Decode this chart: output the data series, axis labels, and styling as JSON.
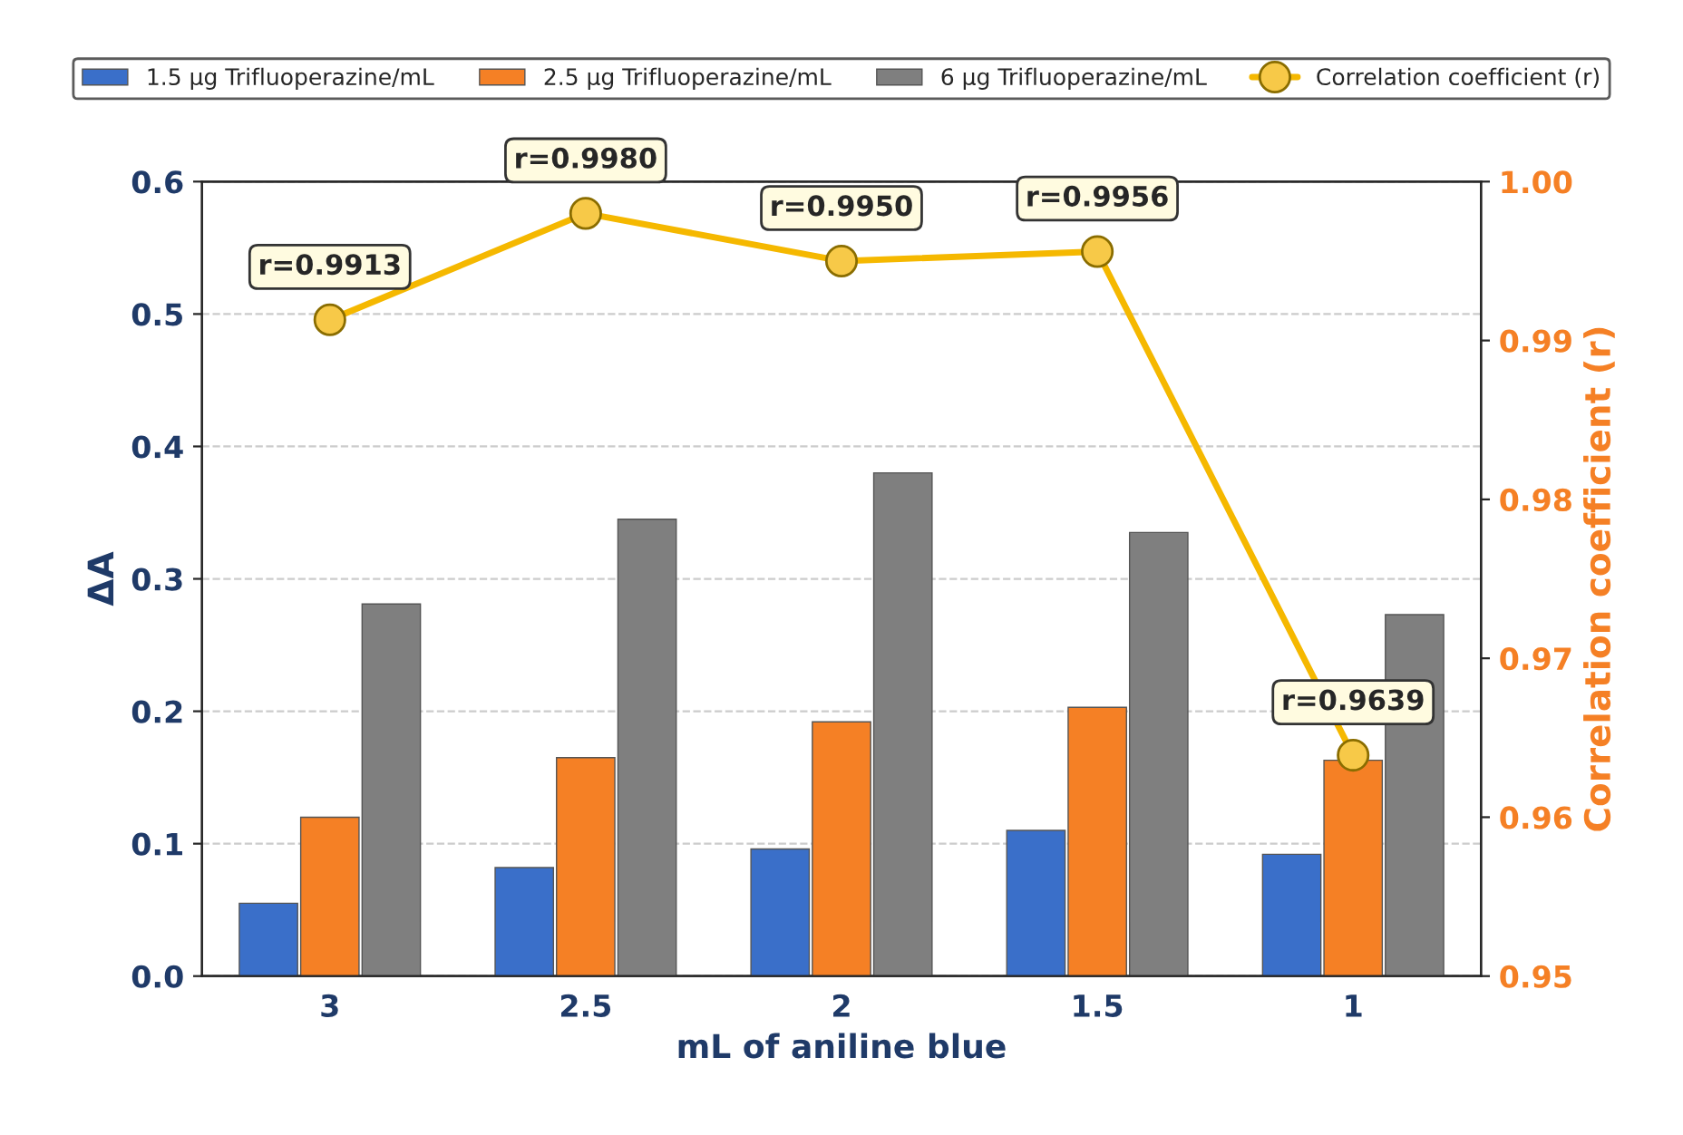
{
  "chart_data": {
    "type": "bar",
    "xlabel": "mL of aniline blue",
    "ylabel": "ΔA",
    "y2label": "Correlation coefficient (r)",
    "categories": [
      "3",
      "2.5",
      "2",
      "1.5",
      "1"
    ],
    "series": [
      {
        "name": "1.5 µg Trifluoperazine/mL",
        "color": "#3a6fc9",
        "values": [
          0.055,
          0.082,
          0.096,
          0.11,
          0.092
        ]
      },
      {
        "name": "2.5 µg Trifluoperazine/mL",
        "color": "#f58025",
        "values": [
          0.12,
          0.165,
          0.192,
          0.203,
          0.163
        ]
      },
      {
        "name": "6 µg Trifluoperazine/mL",
        "color": "#7f7f7f",
        "values": [
          0.281,
          0.345,
          0.38,
          0.335,
          0.273
        ]
      },
      {
        "name": "Correlation coefficient (r)",
        "type": "line",
        "axis": "y2",
        "color": "#f5b800",
        "marker": "circle",
        "values": [
          0.9913,
          0.998,
          0.995,
          0.9956,
          0.9639
        ],
        "value_labels": [
          "r=0.9913",
          "r=0.9980",
          "r=0.9950",
          "r=0.9956",
          "r=0.9639"
        ]
      }
    ],
    "ylim": [
      0,
      0.6
    ],
    "yticks": [
      {
        "value": 0,
        "label": "0.0"
      },
      0.1,
      0.2,
      0.3,
      0.4,
      0.5,
      0.6
    ],
    "y2lim": [
      0.95,
      1.0
    ],
    "y2ticks": [
      0.95,
      0.96,
      0.97,
      0.98,
      0.99,
      {
        "value": 1.0,
        "label": "1.00"
      }
    ],
    "grid": "y",
    "legend": "top"
  }
}
